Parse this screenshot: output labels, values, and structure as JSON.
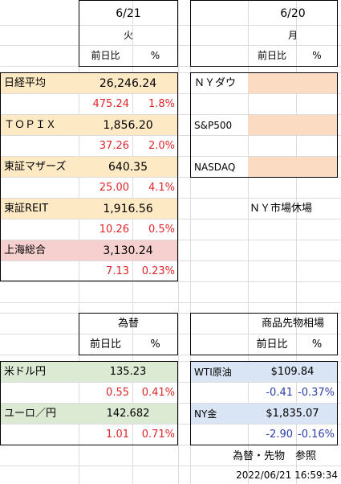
{
  "left_header": {
    "date": "6/21",
    "weekday": "火",
    "col_change": "前日比",
    "col_pct": "%"
  },
  "right_header": {
    "date": "6/20",
    "weekday": "月",
    "col_change": "前日比",
    "col_pct": "%"
  },
  "japan_indices": [
    {
      "name": "日経平均",
      "value": "26,246.24",
      "change": "475.24",
      "pct": "1.8%"
    },
    {
      "name": "ＴＯＰＩＸ",
      "value": "1,856.20",
      "change": "37.26",
      "pct": "2.0%"
    },
    {
      "name": "東証マザーズ",
      "value": "640.35",
      "change": "25.00",
      "pct": "4.1%"
    },
    {
      "name": "東証REIT",
      "value": "1,916.56",
      "change": "10.26",
      "pct": "0.5%"
    },
    {
      "name": "上海総合",
      "value": "3,130.24",
      "change": "7.13",
      "pct": "0.23%"
    }
  ],
  "us_indices": [
    {
      "name": "ＮＹダウ"
    },
    {
      "name": "S&P500"
    },
    {
      "name": "NASDAQ"
    }
  ],
  "us_note": "ＮＹ市場休場",
  "fx": {
    "title": "為替",
    "col_change": "前日比",
    "col_pct": "%",
    "rows": [
      {
        "name": "米ドル円",
        "value": "135.23",
        "change": "0.55",
        "pct": "0.41%"
      },
      {
        "name": "ユーロ／円",
        "value": "142.682",
        "change": "1.01",
        "pct": "0.71%"
      }
    ]
  },
  "commodities": {
    "title": "商品先物相場",
    "col_change": "前日比",
    "col_pct": "%",
    "rows": [
      {
        "name": "WTI原油",
        "value": "$109.84",
        "change": "-0.41",
        "pct": "-0.37%"
      },
      {
        "name": "NY金",
        "value": "$1,835.07",
        "change": "-2.90",
        "pct": "-0.16%"
      }
    ]
  },
  "footer": {
    "note": "為替・先物　参照",
    "timestamp": "2022/06/21 16:59:34"
  },
  "colors": {
    "red": "#e0262a",
    "blue": "#2c3ea8",
    "yellow": "#fde9c4",
    "pink": "#f6cfcf",
    "orange": "#fbdcc2",
    "green": "#dcead3",
    "lightblue": "#d9e5f4"
  }
}
